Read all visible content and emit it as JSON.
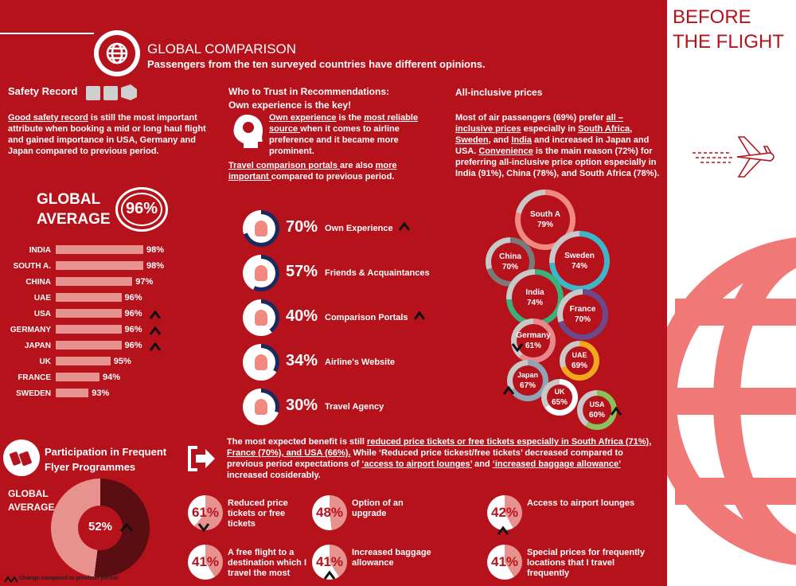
{
  "side": {
    "title_line1": "BEFORE",
    "title_line2": "THE FLIGHT"
  },
  "header": {
    "title": "GLOBAL COMPARISON",
    "subtitle": "Passengers from the ten surveyed countries have different opinions."
  },
  "safety": {
    "heading": "Safety Record",
    "text_u": "Good safety record",
    "text_rest": " is  still the most important attribute when booking a mid or long haul flight and gained importance in USA, Germany and Japan compared to previous period.",
    "global_label_1": "GLOBAL",
    "global_label_2": "AVERAGE",
    "global_value": "96%",
    "countries": [
      {
        "name": "INDIA",
        "label": "98%",
        "value": 98,
        "up": false
      },
      {
        "name": "SOUTH A.",
        "label": "98%",
        "value": 98,
        "up": false
      },
      {
        "name": "CHINA",
        "label": "97%",
        "value": 97,
        "up": false
      },
      {
        "name": "UAE",
        "label": "96%",
        "value": 96,
        "up": false
      },
      {
        "name": "USA",
        "label": "96%",
        "value": 96,
        "up": true
      },
      {
        "name": "GERMANY",
        "label": "96%",
        "value": 96,
        "up": true
      },
      {
        "name": "JAPAN",
        "label": "96%",
        "value": 96,
        "up": true
      },
      {
        "name": "UK",
        "label": "95%",
        "value": 95,
        "up": false
      },
      {
        "name": "FRANCE",
        "label": "94%",
        "value": 94,
        "up": false
      },
      {
        "name": "SWEDEN",
        "label": "93%",
        "value": 93,
        "up": false
      }
    ]
  },
  "trust": {
    "heading1": "Who to Trust in Recommendations:",
    "heading2": "Own experience is the key!",
    "p1_a": "Own experience",
    "p1_b": " is the ",
    "p1_c": "most reliable source ",
    "p1_d": "when it comes to airline preference and it became more prominent.",
    "p2_a": "Travel comparison portals ",
    "p2_b": "are also ",
    "p2_c": "more important ",
    "p2_d": "compared to previous period.",
    "items": [
      {
        "pct": "70%",
        "value": 70,
        "label": "Own Experience",
        "up": true
      },
      {
        "pct": "57%",
        "value": 57,
        "label": "Friends & Acquaintances",
        "up": false
      },
      {
        "pct": "40%",
        "value": 40,
        "label": "Comparison Portals",
        "up": true
      },
      {
        "pct": "34%",
        "value": 34,
        "label": "Airline's Website",
        "up": false
      },
      {
        "pct": "30%",
        "value": 30,
        "label": "Travel Agency",
        "up": false
      }
    ]
  },
  "allinc": {
    "heading": "All-inclusive prices",
    "t1": "Most of air passengers (69%) prefer ",
    "t2": "all – inclusive prices",
    "t3": " especially in ",
    "t4": "South Africa",
    "t5": ", ",
    "t6": "Sweden",
    "t7": ", and ",
    "t8": "India",
    "t9": " and increased in Japan and USA. ",
    "t10": "Convenience",
    "t11": " is the main reason (72%) for preferring all-inclusive price option especially in India (91%), China (78%), and South Africa (78%).",
    "bubbles": [
      {
        "name": "South A",
        "pct": "79%",
        "value": 79,
        "color": "#f08a80"
      },
      {
        "name": "China",
        "pct": "70%",
        "value": 70,
        "color": "#7a7a7a"
      },
      {
        "name": "Sweden",
        "pct": "74%",
        "value": 74,
        "color": "#3fb5c8"
      },
      {
        "name": "India",
        "pct": "74%",
        "value": 74,
        "color": "#3ab07a"
      },
      {
        "name": "France",
        "pct": "70%",
        "value": 70,
        "color": "#6a4a8a"
      },
      {
        "name": "Germany",
        "pct": "61%",
        "value": 61,
        "color": "#e8888c"
      },
      {
        "name": "UAE",
        "pct": "69%",
        "value": 69,
        "color": "#f2a81d"
      },
      {
        "name": "Japan",
        "pct": "67%",
        "value": 67,
        "color": "#8fa5b5"
      },
      {
        "name": "UK",
        "pct": "65%",
        "value": 65,
        "color": "#ffffff"
      },
      {
        "name": "USA",
        "pct": "60%",
        "value": 60,
        "color": "#8cc05a"
      }
    ]
  },
  "ffp": {
    "heading1": "Participation in Frequent",
    "heading2": "Flyer Programmes",
    "global_label_1": "GLOBAL",
    "global_label_2": "AVERAGE",
    "value": 52,
    "pct": "52%",
    "legend": "Change compared to previous period"
  },
  "benefits": {
    "intro_a": "The most expected benefit is still ",
    "intro_b": "reduced price tickets or free tickets especially in South Africa (71%), France (70%), and USA (66%).",
    "intro_c": "  While ‘Reduced price tickest/free tickets’ decreased compared to previous period  expectations of ",
    "intro_d": "‘access to airport lounges’",
    "intro_e": " and ",
    "intro_f": "‘increased baggage allowance’",
    "intro_g": " increased cosiderably.",
    "items": [
      {
        "pct": "61%",
        "value": 61,
        "label": "Reduced price tickets or free tickets"
      },
      {
        "pct": "48%",
        "value": 48,
        "label": "Option of an upgrade"
      },
      {
        "pct": "42%",
        "value": 42,
        "label": "Access to airport lounges"
      },
      {
        "pct": "41%",
        "value": 41,
        "label": "A free flight to a destination which I travel the most"
      },
      {
        "pct": "41%",
        "value": 41,
        "label": "Increased baggage allowance"
      },
      {
        "pct": "41%",
        "value": 41,
        "label": "Special prices for frequently locations that I travel frequently"
      }
    ]
  },
  "colors": {
    "brand_red": "#b5121b",
    "bar_pink": "#e8928f",
    "navy": "#1a2a5e",
    "light_red": "#f08a80"
  }
}
